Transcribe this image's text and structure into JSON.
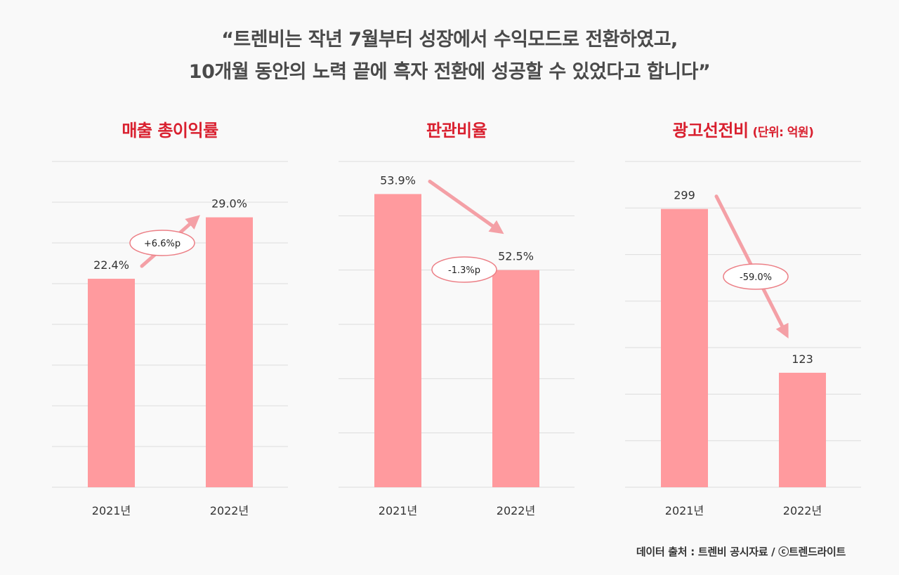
{
  "headline": {
    "line1": "“트렌비는 작년 7월부터 성장에서 수익모드로 전환하였고,",
    "line2": "10개월 동안의 노력 끝에 흑자 전환에 성공할 수 있었다고 합니다”"
  },
  "source": "데이터 출처 : 트렌비 공시자료 / ⓒ트렌드라이트",
  "colors": {
    "bar": "#ff9a9e",
    "arrow": "#f4a0a6",
    "title": "#d9202f",
    "grid": "#dddddd"
  },
  "chart_data": [
    {
      "type": "bar",
      "title": "매출 총이익률",
      "unit": "",
      "categories": [
        "2021년",
        "2022년"
      ],
      "values": [
        22.4,
        29.0
      ],
      "value_labels": [
        "22.4%",
        "29.0%"
      ],
      "ylim": [
        0,
        35
      ],
      "grid": true,
      "change_label": "+6.6%p",
      "trend": "up"
    },
    {
      "type": "bar",
      "title": "판관비율",
      "unit": "",
      "categories": [
        "2021년",
        "2022년"
      ],
      "values": [
        53.9,
        52.5
      ],
      "value_labels": [
        "53.9%",
        "52.5%"
      ],
      "ylim": [
        48.5,
        54.5
      ],
      "grid": true,
      "change_label": "-1.3%p",
      "trend": "down"
    },
    {
      "type": "bar",
      "title": "광고선전비",
      "unit": "(단위: 억원)",
      "categories": [
        "2021년",
        "2022년"
      ],
      "values": [
        299,
        123
      ],
      "value_labels": [
        "299",
        "123"
      ],
      "ylim": [
        0,
        350
      ],
      "grid": true,
      "change_label": "-59.0%",
      "trend": "down"
    }
  ]
}
